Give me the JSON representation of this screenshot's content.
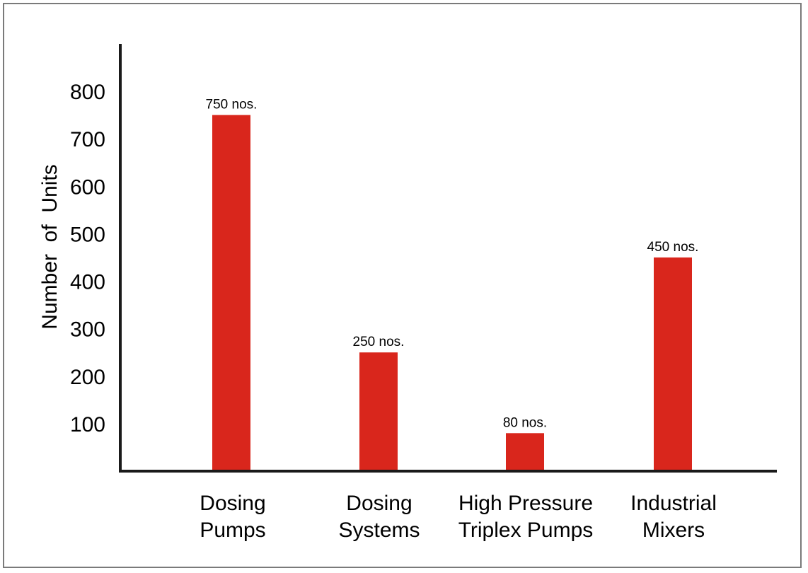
{
  "chart_data": {
    "type": "bar",
    "title": "",
    "xlabel": "",
    "ylabel": "Number  of  Units",
    "categories": [
      [
        "Dosing",
        "Pumps"
      ],
      [
        "Dosing",
        "Systems"
      ],
      [
        "High Pressure",
        "Triplex Pumps"
      ],
      [
        "Industrial",
        "Mixers"
      ]
    ],
    "values": [
      750,
      250,
      80,
      450
    ],
    "data_labels": [
      "750 nos.",
      "250 nos.",
      "80 nos.",
      "450 nos."
    ],
    "yticks": [
      100,
      200,
      300,
      400,
      500,
      600,
      700,
      800
    ],
    "ylim": [
      0,
      800
    ],
    "bar_color": "#d9261c",
    "grid": false,
    "legend": "none"
  }
}
